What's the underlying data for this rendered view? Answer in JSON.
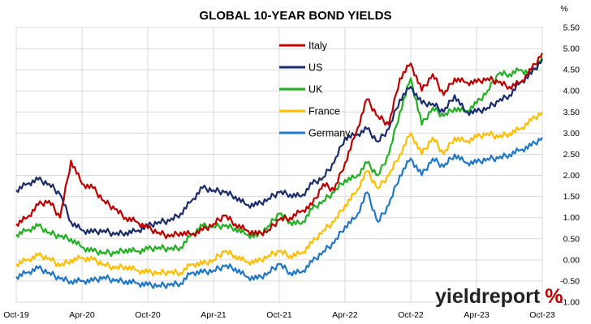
{
  "chart_data": {
    "type": "line",
    "title": "GLOBAL 10-YEAR BOND YIELDS",
    "y_unit": "%",
    "ylim": [
      -1.0,
      5.5
    ],
    "yticks": [
      "5.50",
      "5.00",
      "4.50",
      "4.00",
      "3.50",
      "3.00",
      "2.50",
      "2.00",
      "1.50",
      "1.00",
      "0.50",
      "0.00",
      "-0.50",
      "-1.00"
    ],
    "ytick_values": [
      5.5,
      5.0,
      4.5,
      4.0,
      3.5,
      3.0,
      2.5,
      2.0,
      1.5,
      1.0,
      0.5,
      0.0,
      -0.5,
      -1.0
    ],
    "xticks": [
      "Oct-19",
      "Apr-20",
      "Oct-20",
      "Apr-21",
      "Oct-21",
      "Apr-22",
      "Oct-22",
      "Apr-23",
      "Oct-23"
    ],
    "grid": true,
    "legend_position": "top-center",
    "x": [
      "Oct-19",
      "Nov-19",
      "Dec-19",
      "Jan-20",
      "Feb-20",
      "Mar-20",
      "Apr-20",
      "May-20",
      "Jun-20",
      "Jul-20",
      "Aug-20",
      "Sep-20",
      "Oct-20",
      "Nov-20",
      "Dec-20",
      "Jan-21",
      "Feb-21",
      "Mar-21",
      "Apr-21",
      "May-21",
      "Jun-21",
      "Jul-21",
      "Aug-21",
      "Sep-21",
      "Oct-21",
      "Nov-21",
      "Dec-21",
      "Jan-22",
      "Feb-22",
      "Mar-22",
      "Apr-22",
      "May-22",
      "Jun-22",
      "Jul-22",
      "Aug-22",
      "Sep-22",
      "Oct-22",
      "Nov-22",
      "Dec-22",
      "Jan-23",
      "Feb-23",
      "Mar-23",
      "Apr-23",
      "May-23",
      "Jun-23",
      "Jul-23",
      "Aug-23",
      "Sep-23",
      "Oct-23"
    ],
    "series": [
      {
        "name": "Italy",
        "color": "#c00000",
        "values": [
          0.85,
          1.0,
          1.3,
          1.4,
          1.0,
          2.35,
          1.8,
          1.7,
          1.4,
          1.2,
          1.0,
          0.9,
          0.75,
          0.65,
          0.55,
          0.65,
          0.6,
          0.7,
          0.85,
          1.05,
          0.85,
          0.7,
          0.6,
          0.7,
          0.95,
          1.0,
          1.15,
          1.3,
          1.8,
          1.65,
          2.3,
          3.0,
          3.8,
          3.4,
          3.2,
          4.3,
          4.65,
          4.0,
          4.4,
          3.9,
          4.3,
          4.2,
          4.2,
          4.3,
          4.2,
          4.1,
          4.2,
          4.5,
          4.9
        ]
      },
      {
        "name": "US",
        "color": "#1a2c6e",
        "values": [
          1.65,
          1.8,
          1.9,
          1.8,
          1.55,
          0.9,
          0.7,
          0.65,
          0.7,
          0.6,
          0.65,
          0.68,
          0.8,
          0.9,
          0.92,
          1.1,
          1.4,
          1.7,
          1.65,
          1.6,
          1.5,
          1.3,
          1.3,
          1.45,
          1.6,
          1.55,
          1.5,
          1.8,
          1.95,
          2.3,
          2.9,
          2.95,
          3.1,
          2.8,
          3.1,
          3.8,
          4.1,
          3.7,
          3.7,
          3.5,
          3.9,
          3.5,
          3.5,
          3.6,
          3.75,
          3.9,
          4.2,
          4.4,
          4.75
        ]
      },
      {
        "name": "UK",
        "color": "#22b022",
        "values": [
          0.6,
          0.7,
          0.8,
          0.65,
          0.55,
          0.5,
          0.3,
          0.2,
          0.18,
          0.15,
          0.25,
          0.2,
          0.25,
          0.3,
          0.25,
          0.3,
          0.6,
          0.8,
          0.8,
          0.8,
          0.75,
          0.6,
          0.55,
          0.8,
          1.1,
          0.9,
          0.85,
          1.2,
          1.4,
          1.6,
          1.9,
          1.95,
          2.3,
          2.0,
          2.5,
          3.5,
          4.3,
          3.2,
          3.6,
          3.4,
          3.6,
          3.5,
          3.7,
          4.0,
          4.4,
          4.4,
          4.5,
          4.4,
          4.8
        ]
      },
      {
        "name": "France",
        "color": "#ffbe00",
        "values": [
          -0.1,
          0.0,
          0.1,
          0.05,
          -0.15,
          0.0,
          0.05,
          0.0,
          -0.1,
          -0.2,
          -0.15,
          -0.25,
          -0.3,
          -0.3,
          -0.3,
          -0.3,
          -0.1,
          -0.1,
          0.0,
          0.2,
          0.1,
          -0.05,
          -0.05,
          0.1,
          0.2,
          0.1,
          0.15,
          0.4,
          0.7,
          0.9,
          1.3,
          1.6,
          2.1,
          1.7,
          2.0,
          2.5,
          3.0,
          2.5,
          2.9,
          2.5,
          2.9,
          2.8,
          2.9,
          3.0,
          2.9,
          3.0,
          3.1,
          3.3,
          3.5
        ]
      },
      {
        "name": "Germany",
        "color": "#1f77c8",
        "values": [
          -0.4,
          -0.3,
          -0.2,
          -0.3,
          -0.45,
          -0.5,
          -0.5,
          -0.5,
          -0.4,
          -0.5,
          -0.5,
          -0.55,
          -0.6,
          -0.6,
          -0.6,
          -0.55,
          -0.3,
          -0.3,
          -0.25,
          -0.15,
          -0.2,
          -0.4,
          -0.45,
          -0.3,
          -0.1,
          -0.3,
          -0.3,
          -0.05,
          0.2,
          0.4,
          0.8,
          1.0,
          1.6,
          0.9,
          1.3,
          2.0,
          2.4,
          2.0,
          2.4,
          2.2,
          2.5,
          2.3,
          2.3,
          2.4,
          2.4,
          2.5,
          2.6,
          2.7,
          2.9
        ]
      }
    ]
  },
  "brand": {
    "part1": "yield",
    "part2": "report",
    "percent": "%"
  }
}
